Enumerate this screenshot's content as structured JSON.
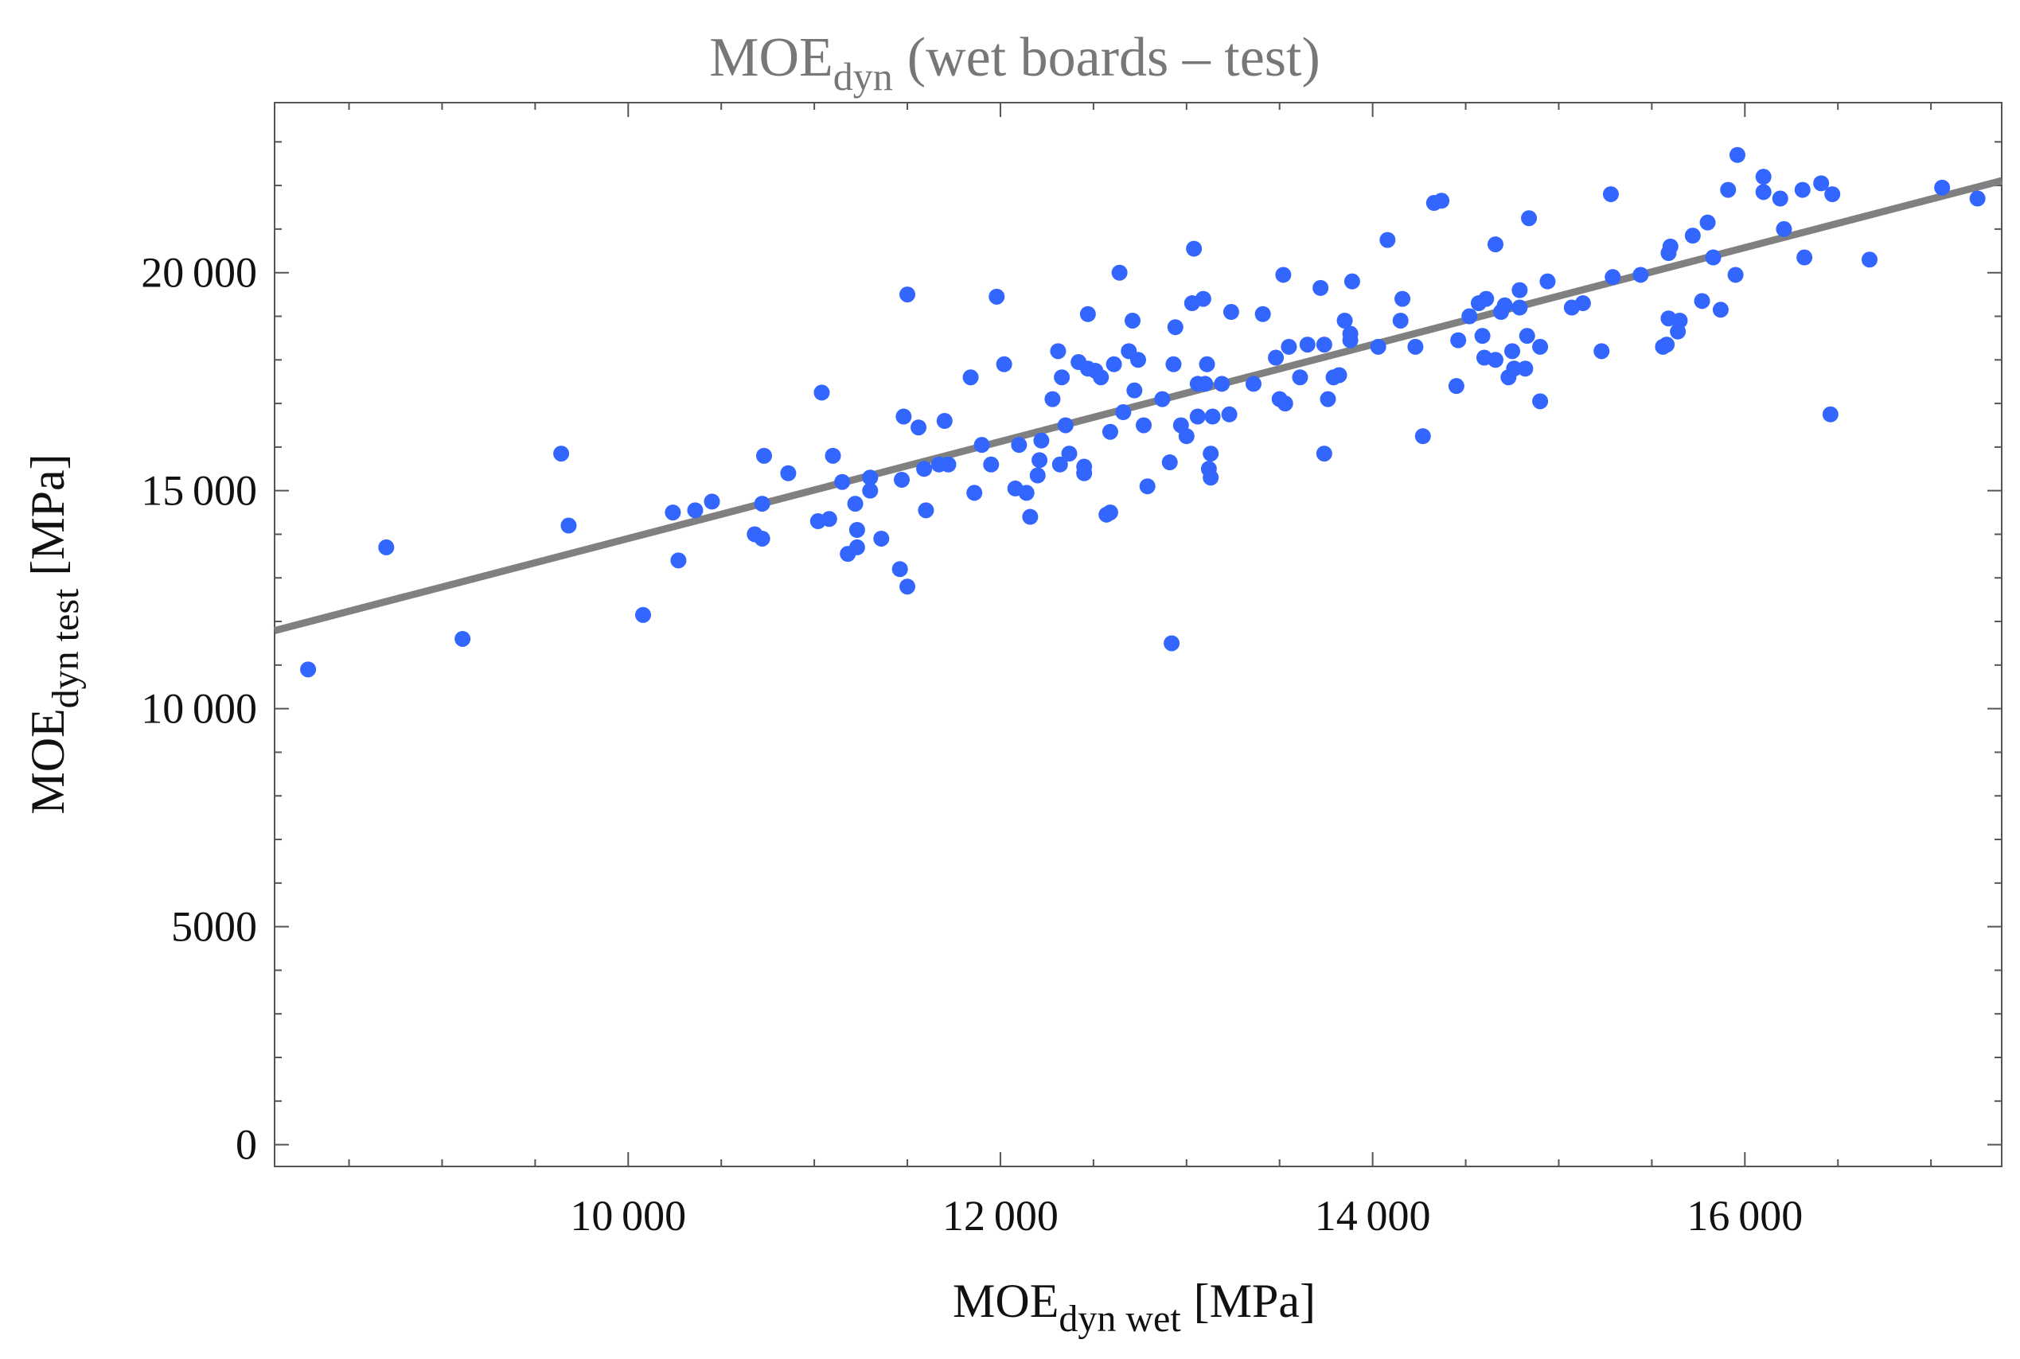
{
  "chart_data": {
    "type": "scatter",
    "title": {
      "main": "MOE",
      "sub": "dyn",
      "suffix": "(wet boards – test)"
    },
    "xlabel": {
      "main": "MOE",
      "sub": "dyn wet",
      "unit": "[MPa]"
    },
    "ylabel": {
      "main": "MOE",
      "sub": "dyn test",
      "unit": "[MPa]"
    },
    "xlim": [
      8100,
      17380
    ],
    "ylim": [
      -500,
      23900
    ],
    "xticks": [
      10000,
      12000,
      14000,
      16000
    ],
    "xtick_labels": [
      "10 000",
      "12 000",
      "14 000",
      "16 000"
    ],
    "yticks": [
      0,
      5000,
      10000,
      15000,
      20000
    ],
    "ytick_labels": [
      "0",
      "5000",
      "10 000",
      "15 000",
      "20 000"
    ],
    "grid": false,
    "series": [
      {
        "name": "boards",
        "color": "#3366FF",
        "marker": "circle",
        "points": [
          [
            8280,
            10900
          ],
          [
            8700,
            13700
          ],
          [
            9110,
            11600
          ],
          [
            9640,
            15850
          ],
          [
            9680,
            14200
          ],
          [
            10080,
            12150
          ],
          [
            10240,
            14500
          ],
          [
            10270,
            13400
          ],
          [
            10360,
            14550
          ],
          [
            10450,
            14750
          ],
          [
            10680,
            14000
          ],
          [
            10720,
            13900
          ],
          [
            10730,
            15800
          ],
          [
            10720,
            14700
          ],
          [
            10860,
            15400
          ],
          [
            11020,
            14300
          ],
          [
            11080,
            14350
          ],
          [
            11040,
            17250
          ],
          [
            11100,
            15800
          ],
          [
            11150,
            15200
          ],
          [
            11180,
            13550
          ],
          [
            11220,
            14700
          ],
          [
            11230,
            14100
          ],
          [
            11230,
            13700
          ],
          [
            11300,
            15300
          ],
          [
            11300,
            15000
          ],
          [
            11360,
            13900
          ],
          [
            11470,
            15250
          ],
          [
            11460,
            13200
          ],
          [
            11480,
            16700
          ],
          [
            11500,
            12800
          ],
          [
            11500,
            19500
          ],
          [
            11560,
            16450
          ],
          [
            11590,
            15500
          ],
          [
            11600,
            14550
          ],
          [
            11670,
            15600
          ],
          [
            11700,
            16600
          ],
          [
            11720,
            15600
          ],
          [
            11840,
            17600
          ],
          [
            11860,
            14950
          ],
          [
            11900,
            16050
          ],
          [
            11950,
            15600
          ],
          [
            11980,
            19450
          ],
          [
            12020,
            17900
          ],
          [
            12080,
            15050
          ],
          [
            12100,
            16050
          ],
          [
            12140,
            14950
          ],
          [
            12160,
            14400
          ],
          [
            12200,
            15350
          ],
          [
            12210,
            15700
          ],
          [
            12220,
            16150
          ],
          [
            12280,
            17100
          ],
          [
            12310,
            18200
          ],
          [
            12320,
            15600
          ],
          [
            12330,
            17600
          ],
          [
            12350,
            16500
          ],
          [
            12370,
            15850
          ],
          [
            12420,
            17950
          ],
          [
            12450,
            15550
          ],
          [
            12450,
            15400
          ],
          [
            12470,
            19050
          ],
          [
            12470,
            17800
          ],
          [
            12510,
            17750
          ],
          [
            12540,
            17600
          ],
          [
            12570,
            14450
          ],
          [
            12590,
            16350
          ],
          [
            12590,
            14500
          ],
          [
            12610,
            17900
          ],
          [
            12640,
            20000
          ],
          [
            12660,
            16800
          ],
          [
            12690,
            18200
          ],
          [
            12710,
            18900
          ],
          [
            12720,
            17300
          ],
          [
            12740,
            18000
          ],
          [
            12770,
            16500
          ],
          [
            12790,
            15100
          ],
          [
            12870,
            17100
          ],
          [
            12910,
            15650
          ],
          [
            12920,
            11500
          ],
          [
            12930,
            17900
          ],
          [
            12940,
            18750
          ],
          [
            12970,
            16500
          ],
          [
            13000,
            16250
          ],
          [
            13030,
            19300
          ],
          [
            13040,
            20550
          ],
          [
            13060,
            17450
          ],
          [
            13060,
            16700
          ],
          [
            13090,
            19400
          ],
          [
            13100,
            17450
          ],
          [
            13110,
            17900
          ],
          [
            13120,
            15500
          ],
          [
            13130,
            15300
          ],
          [
            13130,
            15850
          ],
          [
            13140,
            16700
          ],
          [
            13190,
            17450
          ],
          [
            13230,
            16750
          ],
          [
            13240,
            19100
          ],
          [
            13360,
            17450
          ],
          [
            13410,
            19050
          ],
          [
            13480,
            18050
          ],
          [
            13500,
            17100
          ],
          [
            13520,
            19950
          ],
          [
            13530,
            17000
          ],
          [
            13550,
            18300
          ],
          [
            13610,
            17600
          ],
          [
            13650,
            18350
          ],
          [
            13720,
            19650
          ],
          [
            13740,
            18350
          ],
          [
            13740,
            15850
          ],
          [
            13760,
            17100
          ],
          [
            13790,
            17600
          ],
          [
            13820,
            17650
          ],
          [
            13850,
            18900
          ],
          [
            13880,
            18450
          ],
          [
            13880,
            18600
          ],
          [
            13890,
            19800
          ],
          [
            14030,
            18300
          ],
          [
            14080,
            20750
          ],
          [
            14150,
            18900
          ],
          [
            14160,
            19400
          ],
          [
            14230,
            18300
          ],
          [
            14270,
            16250
          ],
          [
            14330,
            21600
          ],
          [
            14370,
            21650
          ],
          [
            14450,
            17400
          ],
          [
            14460,
            18450
          ],
          [
            14520,
            19000
          ],
          [
            14570,
            19300
          ],
          [
            14590,
            18550
          ],
          [
            14610,
            19400
          ],
          [
            14600,
            18050
          ],
          [
            14660,
            20650
          ],
          [
            14660,
            18000
          ],
          [
            14690,
            19100
          ],
          [
            14710,
            19250
          ],
          [
            14730,
            17600
          ],
          [
            14750,
            18200
          ],
          [
            14760,
            17800
          ],
          [
            14790,
            19600
          ],
          [
            14790,
            19200
          ],
          [
            14820,
            17800
          ],
          [
            14830,
            18550
          ],
          [
            14840,
            21250
          ],
          [
            14900,
            17050
          ],
          [
            14900,
            18300
          ],
          [
            14940,
            19800
          ],
          [
            15070,
            19200
          ],
          [
            15130,
            19300
          ],
          [
            15230,
            18200
          ],
          [
            15280,
            21800
          ],
          [
            15290,
            19900
          ],
          [
            15440,
            19950
          ],
          [
            15560,
            18300
          ],
          [
            15580,
            18350
          ],
          [
            15590,
            18950
          ],
          [
            15600,
            20600
          ],
          [
            15590,
            20450
          ],
          [
            15640,
            18650
          ],
          [
            15650,
            18900
          ],
          [
            15720,
            20850
          ],
          [
            15770,
            19350
          ],
          [
            15800,
            21150
          ],
          [
            15830,
            20350
          ],
          [
            15870,
            19150
          ],
          [
            15910,
            21900
          ],
          [
            15950,
            19950
          ],
          [
            15960,
            22700
          ],
          [
            16100,
            21850
          ],
          [
            16100,
            22200
          ],
          [
            16190,
            21700
          ],
          [
            16210,
            21000
          ],
          [
            16310,
            21900
          ],
          [
            16320,
            20350
          ],
          [
            16410,
            22050
          ],
          [
            16460,
            16750
          ],
          [
            16470,
            21800
          ],
          [
            16670,
            20300
          ],
          [
            17060,
            21950
          ],
          [
            17250,
            21700
          ]
        ]
      },
      {
        "name": "linear fit",
        "color": "#808080",
        "type": "line",
        "points": [
          [
            8100,
            11790
          ],
          [
            17380,
            22110
          ]
        ]
      }
    ]
  }
}
